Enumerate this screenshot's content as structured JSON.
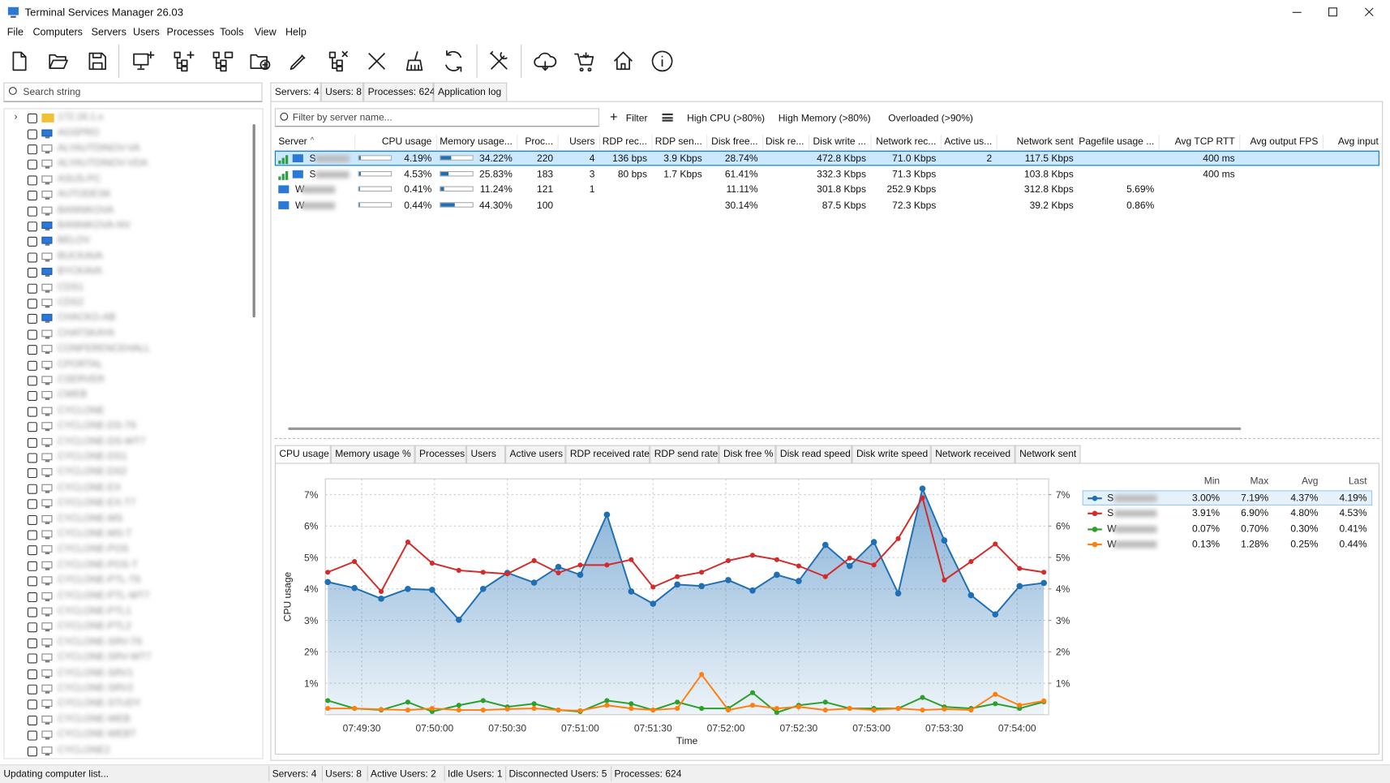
{
  "window": {
    "title": "Terminal Services Manager 26.03"
  },
  "menu": [
    "File",
    "Computers",
    "Servers",
    "Users",
    "Processes",
    "Tools",
    "View",
    "Help"
  ],
  "search": {
    "placeholder": "Search string"
  },
  "tree": {
    "root": "172.16.1.x",
    "items": [
      "AGSPRO",
      "ALYAUTDINOV-VA",
      "ALYAUTDINOV-VDA",
      "ASUS-PC",
      "AUTODESK",
      "BANNIKOVA",
      "BANNIKOVA-NV",
      "BELOV",
      "BUCKAVA",
      "BYCKAVA",
      "CDS1",
      "CDS2",
      "CHACKO-AB",
      "CHATSKAYA",
      "CONFERENCEHALL",
      "CPORTAL",
      "CSERVER",
      "CWEB",
      "CYCLONE",
      "CYCLONE-DS-T6",
      "CYCLONE-DS-WT7",
      "CYCLONE-DS1",
      "CYCLONE-DS2",
      "CYCLONE-EX",
      "CYCLONE-EX-T7",
      "CYCLONE-MS",
      "CYCLONE-MS-T",
      "CYCLONE-POS",
      "CYCLONE-POS-T",
      "CYCLONE-PTL-T6",
      "CYCLONE-PTL-WT7",
      "CYCLONE-PTL1",
      "CYCLONE-PTL2",
      "CYCLONE-SRV-T6",
      "CYCLONE-SRV-WT7",
      "CYCLONE-SRV1",
      "CYCLONE-SRV2",
      "CYCLONE-STUDY",
      "CYCLONE-WEB",
      "CYCLONE-WEBT",
      "CYCLONE2"
    ]
  },
  "tabs": [
    "Servers: 4",
    "Users: 8",
    "Processes: 624",
    "Application log"
  ],
  "filter": {
    "placeholder": "Filter by server name...",
    "button": "Filter",
    "presets": [
      "High CPU (>80%)",
      "High Memory (>80%)",
      "Overloaded (>90%)"
    ]
  },
  "table": {
    "columns": [
      "Server",
      "CPU usage",
      "Memory usage...",
      "Proc...",
      "Users",
      "RDP rec...",
      "RDP sen...",
      "Disk free...",
      "Disk re...",
      "Disk write ...",
      "Network rec...",
      "Active us...",
      "Network sent",
      "Pagefile usage ...",
      "Avg TCP RTT",
      "Avg output FPS",
      "Avg input"
    ],
    "rows": [
      [
        "S",
        "4.19%",
        "34.22%",
        "220",
        "4",
        "136 bps",
        "3.9 Kbps",
        "28.74%",
        null,
        "472.8 Kbps",
        "71.0 Kbps",
        "2",
        "117.5 Kbps",
        null,
        "400 ms",
        null,
        null
      ],
      [
        "S",
        "4.53%",
        "25.83%",
        "183",
        "3",
        "80 bps",
        "1.7 Kbps",
        "61.41%",
        null,
        "332.3 Kbps",
        "71.3 Kbps",
        null,
        "103.8 Kbps",
        null,
        "400 ms",
        null,
        null
      ],
      [
        "W",
        "0.41%",
        "11.24%",
        "121",
        "1",
        null,
        null,
        "11.11%",
        null,
        "301.8 Kbps",
        "252.9 Kbps",
        null,
        "312.8 Kbps",
        "5.69%",
        null,
        null,
        null
      ],
      [
        "W",
        "0.44%",
        "44.30%",
        "100",
        null,
        null,
        null,
        "30.14%",
        null,
        "87.5 Kbps",
        "72.3 Kbps",
        null,
        "39.2 Kbps",
        "0.86%",
        null,
        null,
        null
      ]
    ]
  },
  "chart_tabs": [
    "CPU usage",
    "Memory usage %",
    "Processes",
    "Users",
    "Active users",
    "RDP received rate",
    "RDP send rate",
    "Disk free %",
    "Disk read speed",
    "Disk write speed",
    "Network received",
    "Network sent"
  ],
  "chart_data": {
    "type": "line",
    "y_label": "CPU usage",
    "x_label": "Time",
    "x": [
      "07:49:16",
      "07:49:27",
      "07:49:38",
      "07:49:49",
      "07:49:59",
      "07:50:10",
      "07:50:20",
      "07:50:30",
      "07:50:41",
      "07:50:51",
      "07:51:00",
      "07:51:11",
      "07:51:21",
      "07:51:30",
      "07:51:40",
      "07:51:50",
      "07:52:01",
      "07:52:11",
      "07:52:21",
      "07:52:30",
      "07:52:41",
      "07:52:51",
      "07:53:01",
      "07:53:11",
      "07:53:21",
      "07:53:30",
      "07:53:41",
      "07:53:51",
      "07:54:01",
      "07:54:11"
    ],
    "xlim": [
      "07:49:15",
      "07:54:13"
    ],
    "xticks": [
      "07:49:30",
      "07:50:00",
      "07:50:30",
      "07:51:00",
      "07:51:30",
      "07:52:00",
      "07:52:30",
      "07:53:00",
      "07:53:30",
      "07:54:00"
    ],
    "ylim": [
      0,
      7.5
    ],
    "yticks": [
      {
        "value": 1,
        "label": "1%"
      },
      {
        "value": 2,
        "label": "2%"
      },
      {
        "value": 3,
        "label": "3%"
      },
      {
        "value": 4,
        "label": "4%"
      },
      {
        "value": 5,
        "label": "5%"
      },
      {
        "value": 6,
        "label": "6%"
      },
      {
        "value": 7,
        "label": "7%"
      }
    ],
    "y2lim": [
      0,
      7.5
    ],
    "y2ticks": [
      {
        "value": 1,
        "label": "1%"
      },
      {
        "value": 2,
        "label": "2%"
      },
      {
        "value": 3,
        "label": "3%"
      },
      {
        "value": 4,
        "label": "4%"
      },
      {
        "value": 5,
        "label": "5%"
      },
      {
        "value": 6,
        "label": "6%"
      },
      {
        "value": 7,
        "label": "7%"
      }
    ],
    "grid": true,
    "series": [
      {
        "name": "S",
        "color": "#1f6fb4",
        "fill": true,
        "values": [
          4.22,
          4.03,
          3.69,
          4.0,
          3.97,
          3.02,
          4.0,
          4.51,
          4.2,
          4.7,
          4.45,
          6.36,
          3.92,
          3.53,
          4.14,
          4.09,
          4.28,
          3.95,
          4.45,
          4.25,
          5.4,
          4.73,
          5.49,
          3.86,
          7.19,
          5.54,
          3.8,
          3.19,
          4.09,
          4.19
        ]
      },
      {
        "name": "S",
        "color": "#d42a2a",
        "fill": false,
        "values": [
          4.53,
          4.87,
          3.92,
          5.49,
          4.82,
          4.59,
          4.53,
          4.48,
          4.9,
          4.51,
          4.76,
          4.76,
          4.93,
          4.06,
          4.39,
          4.53,
          4.9,
          5.07,
          4.93,
          4.73,
          4.39,
          4.98,
          4.76,
          5.6,
          6.9,
          4.28,
          4.87,
          5.43,
          4.65,
          4.53
        ]
      },
      {
        "name": "W",
        "color": "#2ca02c",
        "fill": false,
        "values": [
          0.45,
          0.2,
          0.15,
          0.4,
          0.1,
          0.3,
          0.45,
          0.25,
          0.35,
          0.15,
          0.1,
          0.45,
          0.35,
          0.15,
          0.4,
          0.2,
          0.2,
          0.7,
          0.07,
          0.3,
          0.4,
          0.2,
          0.2,
          0.2,
          0.55,
          0.25,
          0.2,
          0.35,
          0.2,
          0.41
        ]
      },
      {
        "name": "W",
        "color": "#ff7f0e",
        "fill": false,
        "values": [
          0.2,
          0.2,
          0.17,
          0.15,
          0.2,
          0.15,
          0.15,
          0.18,
          0.2,
          0.15,
          0.13,
          0.3,
          0.2,
          0.15,
          0.2,
          1.28,
          0.15,
          0.3,
          0.2,
          0.25,
          0.15,
          0.2,
          0.15,
          0.2,
          0.15,
          0.18,
          0.15,
          0.65,
          0.3,
          0.44
        ]
      }
    ]
  },
  "stats": {
    "columns": [
      "Min",
      "Max",
      "Avg",
      "Last"
    ],
    "rows": [
      [
        "3.00%",
        "7.19%",
        "4.37%",
        "4.19%"
      ],
      [
        "3.91%",
        "6.90%",
        "4.80%",
        "4.53%"
      ],
      [
        "0.07%",
        "0.70%",
        "0.30%",
        "0.41%"
      ],
      [
        "0.13%",
        "1.28%",
        "0.25%",
        "0.44%"
      ]
    ]
  },
  "status": [
    "Updating computer list...",
    "Servers: 4",
    "Users: 8",
    "Active Users: 2",
    "Idle Users: 1",
    "Disconnected Users: 5",
    "Processes: 624"
  ]
}
